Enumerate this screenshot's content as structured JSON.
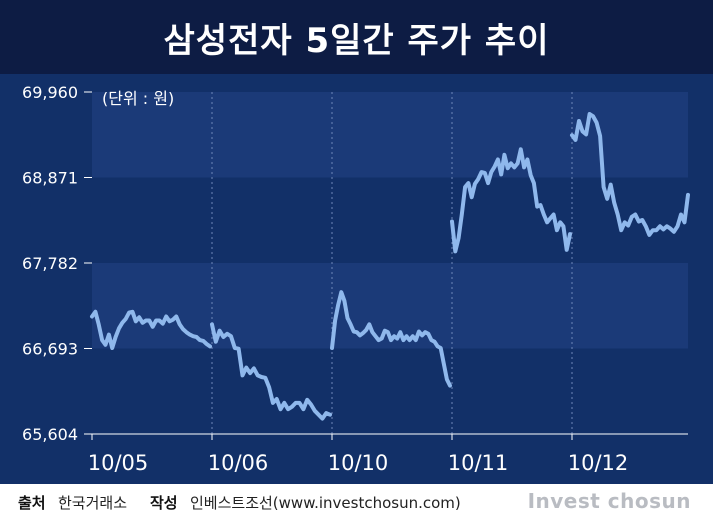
{
  "header": {
    "title": "삼성전자 5일간 주가 추이"
  },
  "chart_data": {
    "type": "line",
    "title": "삼성전자 5일간 주가 추이",
    "unit_note": "(단위 : 원)",
    "ylim": [
      65604,
      69960
    ],
    "yticks": [
      "69,960",
      "68,871",
      "67,782",
      "66,693",
      "65,604"
    ],
    "ytick_values": [
      69960,
      68871,
      67782,
      66693,
      65604
    ],
    "categories": [
      "10/05",
      "10/06",
      "10/10",
      "10/11",
      "10/12"
    ],
    "grid": "horizontal bands, vertical dotted day separators",
    "colors": {
      "line": "#8fb8ec",
      "plot_bg": "#123068",
      "band": "#1b3a78",
      "header_bg": "#0d1c44"
    },
    "series": [
      {
        "segments": [
          {
            "category": "10/05",
            "y": [
              67100,
              67160,
              67000,
              66800,
              66740,
              66870,
              66700,
              66840,
              66950,
              67020,
              67070,
              67150,
              67160,
              67040,
              67090,
              67020,
              67050,
              67050,
              66970,
              67050,
              67050,
              67010,
              67100,
              67040,
              67060,
              67100,
              67000,
              66940,
              66900,
              66870,
              66850,
              66840,
              66800,
              66790,
              66750,
              66720
            ]
          },
          {
            "category": "10/06",
            "y": [
              67000,
              66780,
              66920,
              66840,
              66880,
              66850,
              66700,
              66690,
              66350,
              66450,
              66380,
              66440,
              66350,
              66330,
              66320,
              66200,
              66000,
              66050,
              65920,
              66000,
              65920,
              65950,
              66000,
              66000,
              65920,
              66040,
              65980,
              65900,
              65850,
              65800,
              65870,
              65850
            ]
          },
          {
            "category": "10/10",
            "y": [
              66700,
              67050,
              67250,
              67410,
              67300,
              67080,
              67000,
              66910,
              66900,
              66860,
              66890,
              66930,
              67000,
              66900,
              66850,
              66800,
              66820,
              66920,
              66900,
              66800,
              66850,
              66820,
              66900,
              66800,
              66850,
              66800,
              66850,
              66800,
              66910,
              66860,
              66900,
              66880,
              66800,
              66780,
              66720,
              66700,
              66500,
              66300,
              66220
            ]
          },
          {
            "category": "10/11",
            "y": [
              68310,
              67930,
              68100,
              68400,
              68750,
              68800,
              68620,
              68790,
              68850,
              68940,
              68930,
              68800,
              68940,
              69010,
              69100,
              68910,
              69160,
              68990,
              69050,
              69000,
              69050,
              69230,
              69000,
              69100,
              68900,
              68800,
              68500,
              68520,
              68400,
              68300,
              68350,
              68400,
              68200,
              68300,
              68250,
              67950,
              68150
            ]
          },
          {
            "category": "10/12",
            "y": [
              69410,
              69350,
              69590,
              69460,
              69420,
              69680,
              69650,
              69570,
              69400,
              68750,
              68600,
              68780,
              68550,
              68400,
              68200,
              68300,
              68260,
              68370,
              68400,
              68310,
              68330,
              68250,
              68140,
              68200,
              68200,
              68250,
              68210,
              68250,
              68220,
              68180,
              68250,
              68400,
              68300,
              68650
            ]
          }
        ]
      }
    ]
  },
  "footer": {
    "source_label": "출처",
    "source_value": "한국거래소",
    "author_label": "작성",
    "author_value": "인베스트조선(www.investchosun.com)",
    "brand": "Invest chosun"
  }
}
